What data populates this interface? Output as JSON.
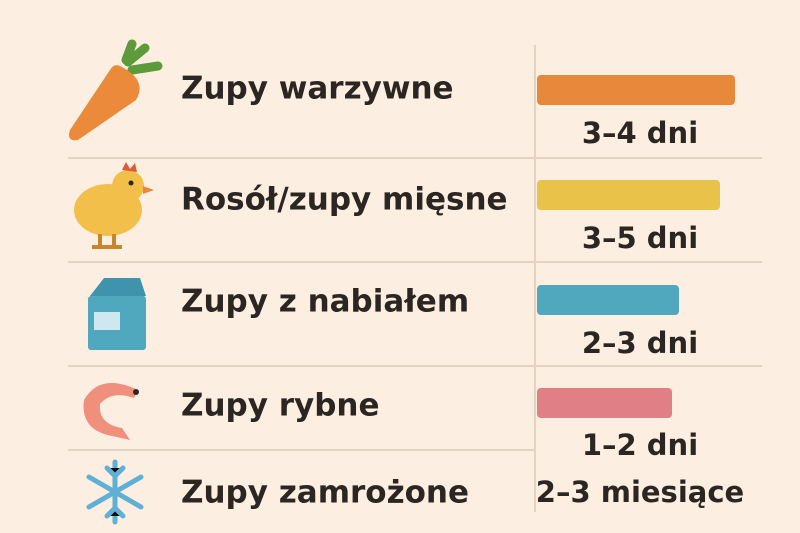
{
  "rows": [
    {
      "label": "Zupy warzywne",
      "duration": "3–4 dni"
    },
    {
      "label": "Rosół/zupy mięsne",
      "duration": "3–5 dni"
    },
    {
      "label": "Zupy z nabiałem",
      "duration": "2–3 dni"
    },
    {
      "label": "Zupy rybne",
      "duration": "1–2 dni"
    },
    {
      "label": "Zupy zamrożone",
      "duration": "2–3 miesiące"
    }
  ]
}
